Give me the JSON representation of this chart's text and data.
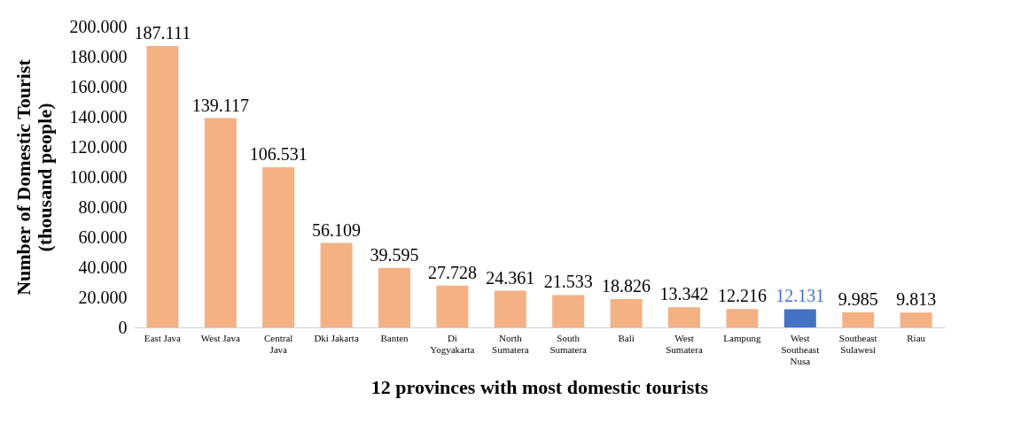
{
  "chart_data": {
    "type": "bar",
    "xlabel": "12 provinces with most domestic tourists",
    "ylabel": "Number of Domestic Tourist (thousand people)",
    "categories": [
      "East Java",
      "West Java",
      "Central Java",
      "Dki Jakarta",
      "Banten",
      "Di Yogyakarta",
      "North Sumatera",
      "South Sumatera",
      "Bali",
      "West Sumatera",
      "Lampung",
      "West Southeast Nusa",
      "Southeast Sulawesi",
      "Riau"
    ],
    "values": [
      187111,
      139117,
      106531,
      56109,
      39595,
      27728,
      24361,
      21533,
      18826,
      13342,
      12216,
      12131,
      9985,
      9813
    ],
    "value_labels": [
      "187.111",
      "139.117",
      "106.531",
      "56.109",
      "39.595",
      "27.728",
      "24.361",
      "21.533",
      "18.826",
      "13.342",
      "12.216",
      "12.131",
      "9.985",
      "9.813"
    ],
    "colors": [
      "#f4b183",
      "#f4b183",
      "#f4b183",
      "#f4b183",
      "#f4b183",
      "#f4b183",
      "#f4b183",
      "#f4b183",
      "#f4b183",
      "#f4b183",
      "#f4b183",
      "#4472c4",
      "#f4b183",
      "#f4b183"
    ],
    "ylim": [
      0,
      200000
    ],
    "yticks": [
      0,
      {
        "value": 20000,
        "label": "20.000"
      },
      {
        "value": 40000,
        "label": "40.000"
      },
      {
        "value": 60000,
        "label": "60.000"
      },
      {
        "value": 80000,
        "label": "80.000"
      },
      {
        "value": 100000,
        "label": "100.000"
      },
      {
        "value": 120000,
        "label": "120.000"
      },
      {
        "value": 140000,
        "label": "140.000"
      },
      {
        "value": 160000,
        "label": "160.000"
      },
      {
        "value": 180000,
        "label": "180.000"
      },
      {
        "value": 200000,
        "label": "200.000"
      }
    ],
    "grid": false
  }
}
